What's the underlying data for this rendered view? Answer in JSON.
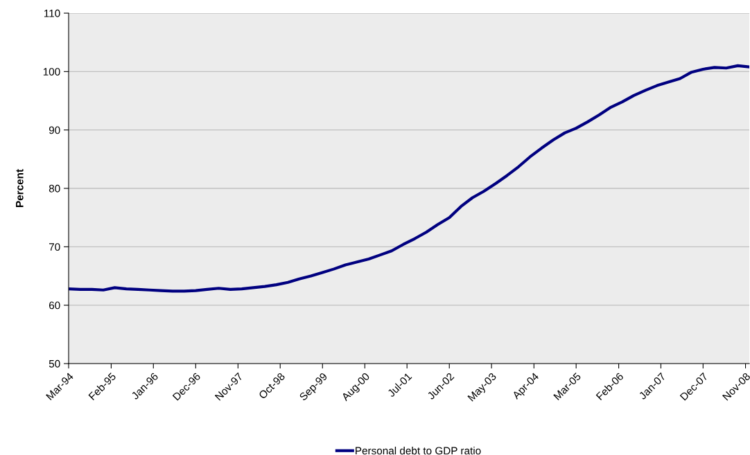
{
  "chart_data": {
    "type": "line",
    "ylabel": "Percent",
    "x": [
      "1994-03",
      "1994-06",
      "1994-09",
      "1994-12",
      "1995-03",
      "1995-06",
      "1995-09",
      "1995-12",
      "1996-03",
      "1996-06",
      "1996-09",
      "1996-12",
      "1997-03",
      "1997-06",
      "1997-09",
      "1997-12",
      "1998-03",
      "1998-06",
      "1998-09",
      "1998-12",
      "1999-03",
      "1999-06",
      "1999-09",
      "1999-12",
      "2000-03",
      "2000-06",
      "2000-09",
      "2000-12",
      "2001-03",
      "2001-06",
      "2001-09",
      "2001-12",
      "2002-03",
      "2002-06",
      "2002-09",
      "2002-12",
      "2003-03",
      "2003-06",
      "2003-09",
      "2003-12",
      "2004-03",
      "2004-06",
      "2004-09",
      "2004-12",
      "2005-03",
      "2005-06",
      "2005-09",
      "2005-12",
      "2006-03",
      "2006-06",
      "2006-09",
      "2006-12",
      "2007-03",
      "2007-06",
      "2007-09",
      "2007-12",
      "2008-03",
      "2008-06",
      "2008-09",
      "2008-12"
    ],
    "series": [
      {
        "name": "Personal debt to GDP ratio",
        "color": "#000080",
        "values": [
          62.8,
          62.7,
          62.7,
          62.6,
          63.0,
          62.8,
          62.7,
          62.6,
          62.5,
          62.4,
          62.4,
          62.5,
          62.7,
          62.9,
          62.7,
          62.8,
          63.0,
          63.2,
          63.5,
          63.9,
          64.5,
          65.0,
          65.6,
          66.2,
          66.9,
          67.4,
          67.9,
          68.6,
          69.3,
          70.4,
          71.4,
          72.5,
          73.8,
          75.0,
          76.9,
          78.4,
          79.5,
          80.8,
          82.2,
          83.7,
          85.4,
          86.9,
          88.3,
          89.5,
          90.3,
          91.4,
          92.6,
          93.9,
          94.8,
          95.9,
          96.8,
          97.6,
          98.2,
          98.8,
          99.9,
          100.4,
          100.7,
          100.6,
          101.0,
          100.8
        ]
      }
    ],
    "xlim": [
      "1994-03",
      "2008-12"
    ],
    "xticks": [
      {
        "value": "1994-03",
        "label": "Mar-94"
      },
      {
        "value": "1995-02",
        "label": "Feb-95"
      },
      {
        "value": "1996-01",
        "label": "Jan-96"
      },
      {
        "value": "1996-12",
        "label": "Dec-96"
      },
      {
        "value": "1997-11",
        "label": "Nov-97"
      },
      {
        "value": "1998-10",
        "label": "Oct-98"
      },
      {
        "value": "1999-09",
        "label": "Sep-99"
      },
      {
        "value": "2000-08",
        "label": "Aug-00"
      },
      {
        "value": "2001-07",
        "label": "Jul-01"
      },
      {
        "value": "2002-06",
        "label": "Jun-02"
      },
      {
        "value": "2003-05",
        "label": "May-03"
      },
      {
        "value": "2004-04",
        "label": "Apr-04"
      },
      {
        "value": "2005-03",
        "label": "Mar-05"
      },
      {
        "value": "2006-02",
        "label": "Feb-06"
      },
      {
        "value": "2007-01",
        "label": "Jan-07"
      },
      {
        "value": "2007-12",
        "label": "Dec-07"
      },
      {
        "value": "2008-11",
        "label": "Nov-08"
      }
    ],
    "ylim": [
      50,
      110
    ],
    "yticks": [
      50,
      60,
      70,
      80,
      90,
      100,
      110
    ],
    "grid": "y",
    "legend": "bottom",
    "marker": "none",
    "line_style": "solid"
  }
}
